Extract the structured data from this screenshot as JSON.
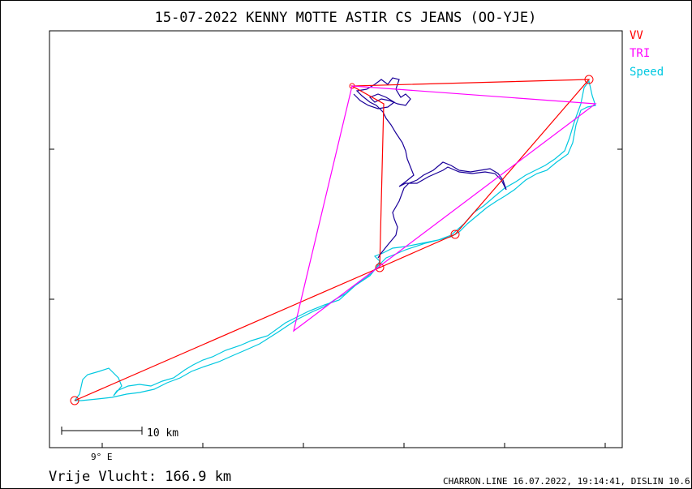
{
  "title": "15-07-2022   KENNY MOTTE   ASTIR CS JEANS (OO-YJE)",
  "legend": [
    {
      "label": "VV",
      "color": "#ff0000"
    },
    {
      "label": "TRI",
      "color": "#ff00ff"
    },
    {
      "label": "Speed",
      "color": "#00c8e0"
    }
  ],
  "axis_label": "9° E",
  "scale_label": "10 km",
  "distance_label": "Vrije Vlucht:  166.9 km",
  "footer": "CHARRON.LINE 16.07.2022, 19:14:41, DISLIN 10.6",
  "colors": {
    "vv": "#ff0000",
    "tri": "#ff00ff",
    "speed": "#00c8e0",
    "track": "#1a0099"
  }
}
